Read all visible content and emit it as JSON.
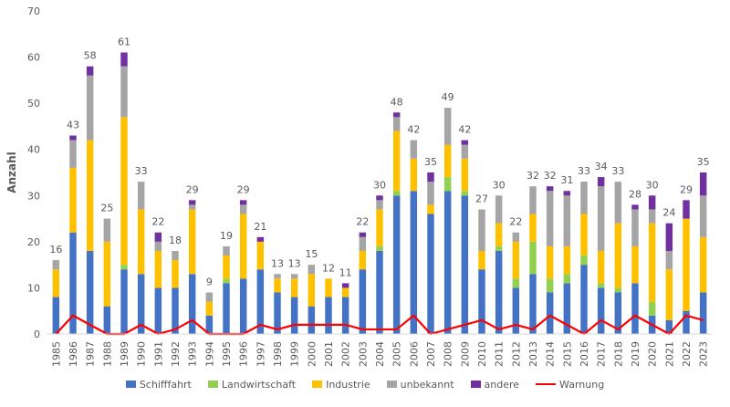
{
  "chart_data": {
    "type": "bar",
    "stacked": true,
    "ylabel": "Anzahl",
    "xlabel": "",
    "ylim": [
      0,
      70
    ],
    "yticks": [
      0,
      10,
      20,
      30,
      40,
      50,
      60,
      70
    ],
    "grid": false,
    "legend_position": "bottom",
    "categories": [
      "1985",
      "1986",
      "1987",
      "1988",
      "1989",
      "1990",
      "1991",
      "1992",
      "1993",
      "1994",
      "1995",
      "1996",
      "1997",
      "1998",
      "1999",
      "2000",
      "2001",
      "2002",
      "2003",
      "2004",
      "2005",
      "2006",
      "2007",
      "2008",
      "2009",
      "2010",
      "2011",
      "2012",
      "2013",
      "2014",
      "2015",
      "2016",
      "2017",
      "2018",
      "2019",
      "2020",
      "2021",
      "2022",
      "2023"
    ],
    "series": [
      {
        "name": "Schifffahrt",
        "color": "#4472C4",
        "values": [
          8,
          22,
          18,
          6,
          14,
          13,
          10,
          10,
          13,
          4,
          11,
          12,
          14,
          9,
          8,
          6,
          8,
          8,
          14,
          18,
          30,
          31,
          26,
          31,
          30,
          14,
          18,
          10,
          13,
          9,
          11,
          15,
          10,
          9,
          11,
          4,
          3,
          5,
          9
        ]
      },
      {
        "name": "Landwirtschaft",
        "color": "#92D050",
        "values": [
          0,
          0,
          0,
          0,
          1,
          0,
          0,
          0,
          0,
          0,
          1,
          0,
          0,
          0,
          0,
          0,
          0,
          0,
          0,
          1,
          1,
          0,
          0,
          3,
          1,
          0,
          1,
          2,
          7,
          3,
          2,
          2,
          1,
          1,
          0,
          3,
          0,
          0,
          0
        ]
      },
      {
        "name": "Industrie",
        "color": "#FFC000",
        "values": [
          6,
          14,
          24,
          14,
          32,
          14,
          8,
          6,
          14,
          3,
          5,
          14,
          6,
          3,
          4,
          7,
          4,
          2,
          4,
          8,
          13,
          7,
          2,
          7,
          7,
          4,
          5,
          8,
          6,
          7,
          6,
          9,
          7,
          14,
          8,
          17,
          11,
          20,
          12
        ]
      },
      {
        "name": "unbekannt",
        "color": "#A5A5A5",
        "values": [
          2,
          6,
          14,
          5,
          11,
          6,
          2,
          2,
          1,
          2,
          2,
          2,
          0,
          1,
          1,
          2,
          0,
          0,
          3,
          2,
          3,
          4,
          5,
          8,
          3,
          9,
          6,
          2,
          6,
          12,
          11,
          7,
          14,
          9,
          8,
          3,
          4,
          0,
          9
        ]
      },
      {
        "name": "andere",
        "color": "#7030A0",
        "values": [
          0,
          1,
          2,
          0,
          3,
          0,
          2,
          0,
          1,
          0,
          0,
          1,
          1,
          0,
          0,
          0,
          0,
          1,
          1,
          1,
          1,
          0,
          2,
          0,
          1,
          0,
          0,
          0,
          0,
          1,
          1,
          0,
          2,
          0,
          1,
          3,
          6,
          4,
          5
        ]
      }
    ],
    "totals": [
      16,
      43,
      58,
      25,
      61,
      33,
      22,
      18,
      29,
      9,
      19,
      29,
      21,
      13,
      13,
      15,
      12,
      11,
      22,
      30,
      48,
      42,
      35,
      49,
      42,
      27,
      30,
      22,
      32,
      32,
      31,
      33,
      34,
      33,
      28,
      30,
      24,
      29,
      35
    ],
    "line_series": {
      "name": "Warnung",
      "color": "#FF0000",
      "values": [
        0,
        4,
        2,
        0,
        0,
        2,
        0,
        1,
        3,
        0,
        0,
        0,
        2,
        1,
        2,
        2,
        2,
        2,
        1,
        1,
        1,
        4,
        0,
        1,
        2,
        3,
        1,
        2,
        1,
        4,
        2,
        0,
        3,
        1,
        4,
        2,
        0,
        4,
        3
      ]
    }
  }
}
